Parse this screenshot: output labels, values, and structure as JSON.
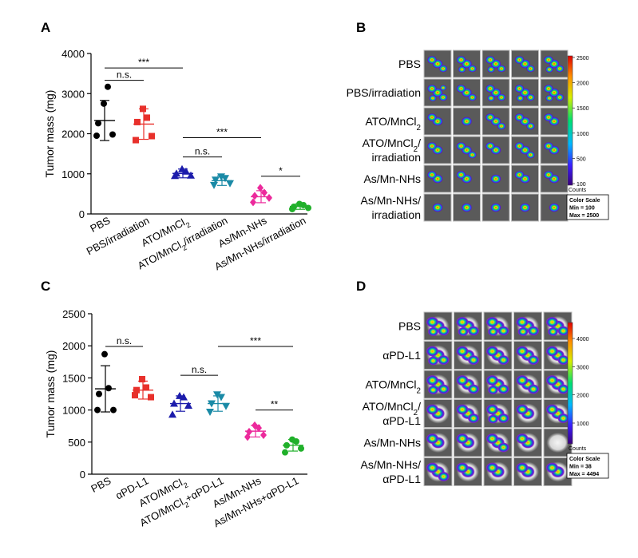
{
  "panels": {
    "A": "A",
    "B": "B",
    "C": "C",
    "D": "D"
  },
  "chart_data": [
    {
      "panel": "A",
      "type": "scatter",
      "ylabel": "Tumor mass (mg)",
      "ylim": [
        0,
        4000
      ],
      "yticks": [
        "0",
        "1000",
        "2000",
        "3000",
        "4000"
      ],
      "categories": [
        "PBS",
        "PBS/irradiation",
        "ATO/MnCl2",
        "ATO/MnCl2/irradiation",
        "As/Mn-NHs",
        "As/Mn-NHs/irradiation"
      ],
      "groups": [
        {
          "name": "PBS",
          "label": "PBS",
          "sub": "",
          "after": "",
          "color": "#000000",
          "marker": "circle",
          "mean": 2330,
          "sd": 500,
          "points": [
            2750,
            3170,
            2260,
            1980,
            1950
          ]
        },
        {
          "name": "PBS/irradiation",
          "label": "PBS/irradiation",
          "sub": "",
          "after": "",
          "color": "#e8302b",
          "marker": "square",
          "mean": 2240,
          "sd": 380,
          "points": [
            2620,
            2400,
            2290,
            1940,
            1840
          ]
        },
        {
          "name": "ATO/MnCl2",
          "label": "ATO/MnCl",
          "sub": "2",
          "after": "",
          "color": "#1c1cab",
          "marker": "triangle-up",
          "mean": 1010,
          "sd": 110,
          "points": [
            1120,
            1060,
            1010,
            960,
            950
          ]
        },
        {
          "name": "ATO/MnCl2/irradiation",
          "label": "ATO/MnCl",
          "sub": "2",
          "after": "/irradiation",
          "color": "#1a8aa6",
          "marker": "triangle-down",
          "mean": 830,
          "sd": 120,
          "points": [
            930,
            890,
            850,
            760,
            720
          ]
        },
        {
          "name": "As/Mn-NHs",
          "label": "As/Mn-NHs",
          "sub": "",
          "after": "",
          "color": "#ec2a9c",
          "marker": "diamond",
          "mean": 430,
          "sd": 150,
          "points": [
            650,
            530,
            450,
            400,
            290
          ]
        },
        {
          "name": "As/Mn-NHs/irradiation",
          "label": "As/Mn-NHs/irradiation",
          "sub": "",
          "after": "",
          "color": "#20b02a",
          "marker": "circle",
          "mean": 185,
          "sd": 70,
          "points": [
            250,
            220,
            180,
            150,
            120
          ]
        }
      ],
      "significance": [
        {
          "from": 0,
          "to": 1,
          "y": 3330,
          "label": "n.s."
        },
        {
          "from": 0,
          "to": 2,
          "y": 3640,
          "label": "***"
        },
        {
          "from": 2,
          "to": 3,
          "y": 1420,
          "label": "n.s."
        },
        {
          "from": 2,
          "to": 4,
          "y": 1900,
          "label": "***"
        },
        {
          "from": 4,
          "to": 5,
          "y": 940,
          "label": "*"
        }
      ]
    },
    {
      "panel": "C",
      "type": "scatter",
      "ylabel": "Tumor mass (mg)",
      "ylim": [
        0,
        2500
      ],
      "yticks": [
        "0",
        "500",
        "1000",
        "1500",
        "2000",
        "2500"
      ],
      "categories": [
        "PBS",
        "αPD-L1",
        "ATO/MnCl2",
        "ATO/MnCl2+αPD-L1",
        "As/Mn-NHs",
        "As/Mn-NHs+αPD-L1"
      ],
      "groups": [
        {
          "name": "PBS",
          "label": "PBS",
          "sub": "",
          "after": "",
          "color": "#000000",
          "marker": "circle",
          "mean": 1330,
          "sd": 360,
          "points": [
            1870,
            1340,
            1250,
            1000,
            1000
          ]
        },
        {
          "name": "αPD-L1",
          "label": "αPD-L1",
          "sub": "",
          "after": "",
          "color": "#e8302b",
          "marker": "square",
          "mean": 1310,
          "sd": 140,
          "points": [
            1480,
            1350,
            1310,
            1200,
            1230
          ]
        },
        {
          "name": "ATO/MnCl2",
          "label": "ATO/MnCl",
          "sub": "2",
          "after": "",
          "color": "#1c1cab",
          "marker": "triangle-up",
          "mean": 1100,
          "sd": 120,
          "points": [
            1220,
            1200,
            1100,
            1070,
            930
          ]
        },
        {
          "name": "ATO/MnCl2+αPD-L1",
          "label": "ATO/MnCl",
          "sub": "2",
          "after": "+αPD-L1",
          "color": "#1a8aa6",
          "marker": "triangle-down",
          "mean": 1100,
          "sd": 120,
          "points": [
            1240,
            1200,
            1100,
            1060,
            970
          ]
        },
        {
          "name": "As/Mn-NHs",
          "label": "As/Mn-NHs",
          "sub": "",
          "after": "",
          "color": "#ec2a9c",
          "marker": "diamond",
          "mean": 670,
          "sd": 90,
          "points": [
            760,
            720,
            660,
            610,
            580
          ]
        },
        {
          "name": "As/Mn-NHs+αPD-L1",
          "label": "As/Mn-NHs+αPD-L1",
          "sub": "",
          "after": "",
          "color": "#20b02a",
          "marker": "circle",
          "mean": 450,
          "sd": 90,
          "points": [
            540,
            510,
            450,
            400,
            340
          ]
        }
      ],
      "significance": [
        {
          "from": 0,
          "to": 1,
          "y": 1990,
          "label": "n.s."
        },
        {
          "from": 2,
          "to": 3,
          "y": 1540,
          "label": "n.s."
        },
        {
          "from": 3,
          "to": 5,
          "y": 1990,
          "label": "***"
        },
        {
          "from": 4,
          "to": 5,
          "y": 1000,
          "label": "**"
        }
      ]
    }
  ],
  "imaging": [
    {
      "panel": "B",
      "rows": [
        {
          "lines": [
            {
              "text": "PBS",
              "sub": "",
              "after": ""
            }
          ],
          "blobs": [
            3,
            4,
            4,
            3,
            4
          ]
        },
        {
          "lines": [
            {
              "text": "PBS/irradiation",
              "sub": "",
              "after": ""
            }
          ],
          "blobs": [
            5,
            3,
            4,
            4,
            4
          ]
        },
        {
          "lines": [
            {
              "text": "ATO/MnCl",
              "sub": "2",
              "after": ""
            }
          ],
          "blobs": [
            2,
            1,
            3,
            3,
            2
          ]
        },
        {
          "lines": [
            {
              "text": "ATO/MnCl",
              "sub": "2",
              "after": "/"
            },
            {
              "text": "irradiation",
              "sub": "",
              "after": ""
            }
          ],
          "blobs": [
            2,
            3,
            2,
            3,
            2
          ]
        },
        {
          "lines": [
            {
              "text": "As/Mn-NHs",
              "sub": "",
              "after": ""
            }
          ],
          "blobs": [
            2,
            2,
            1,
            2,
            2
          ]
        },
        {
          "lines": [
            {
              "text": "As/Mn-NHs/",
              "sub": "",
              "after": ""
            },
            {
              "text": "irradiation",
              "sub": "",
              "after": ""
            }
          ],
          "blobs": [
            1,
            1,
            1,
            1,
            1
          ]
        }
      ],
      "colorbar": {
        "ticks": [
          "2500",
          "2000",
          "1500",
          "1000",
          "500",
          "100"
        ],
        "unit": "Counts"
      },
      "scale_box": [
        "Color Scale",
        "Min = 100",
        "Max = 2500"
      ]
    },
    {
      "panel": "D",
      "rows": [
        {
          "lines": [
            {
              "text": "PBS",
              "sub": "",
              "after": ""
            }
          ],
          "blobs": [
            4,
            4,
            4,
            4,
            4
          ]
        },
        {
          "lines": [
            {
              "text": "αPD-L1",
              "sub": "",
              "after": ""
            }
          ],
          "blobs": [
            4,
            3,
            3,
            3,
            3
          ]
        },
        {
          "lines": [
            {
              "text": "ATO/MnCl",
              "sub": "2",
              "after": ""
            }
          ],
          "blobs": [
            4,
            3,
            4,
            3,
            3
          ]
        },
        {
          "lines": [
            {
              "text": "ATO/MnCl",
              "sub": "2",
              "after": "/"
            },
            {
              "text": "αPD-L1",
              "sub": "",
              "after": ""
            }
          ],
          "blobs": [
            2,
            3,
            4,
            2,
            3
          ]
        },
        {
          "lines": [
            {
              "text": "As/Mn-NHs",
              "sub": "",
              "after": ""
            }
          ],
          "blobs": [
            2,
            2,
            3,
            2,
            0
          ]
        },
        {
          "lines": [
            {
              "text": "As/Mn-NHs/",
              "sub": "",
              "after": ""
            },
            {
              "text": "αPD-L1",
              "sub": "",
              "after": ""
            }
          ],
          "blobs": [
            3,
            2,
            2,
            2,
            2
          ]
        }
      ],
      "colorbar": {
        "ticks": [
          "4000",
          "3000",
          "2000",
          "1000"
        ],
        "unit": "Counts"
      },
      "scale_box": [
        "Color Scale",
        "Min = 38",
        "Max = 4494"
      ]
    }
  ]
}
